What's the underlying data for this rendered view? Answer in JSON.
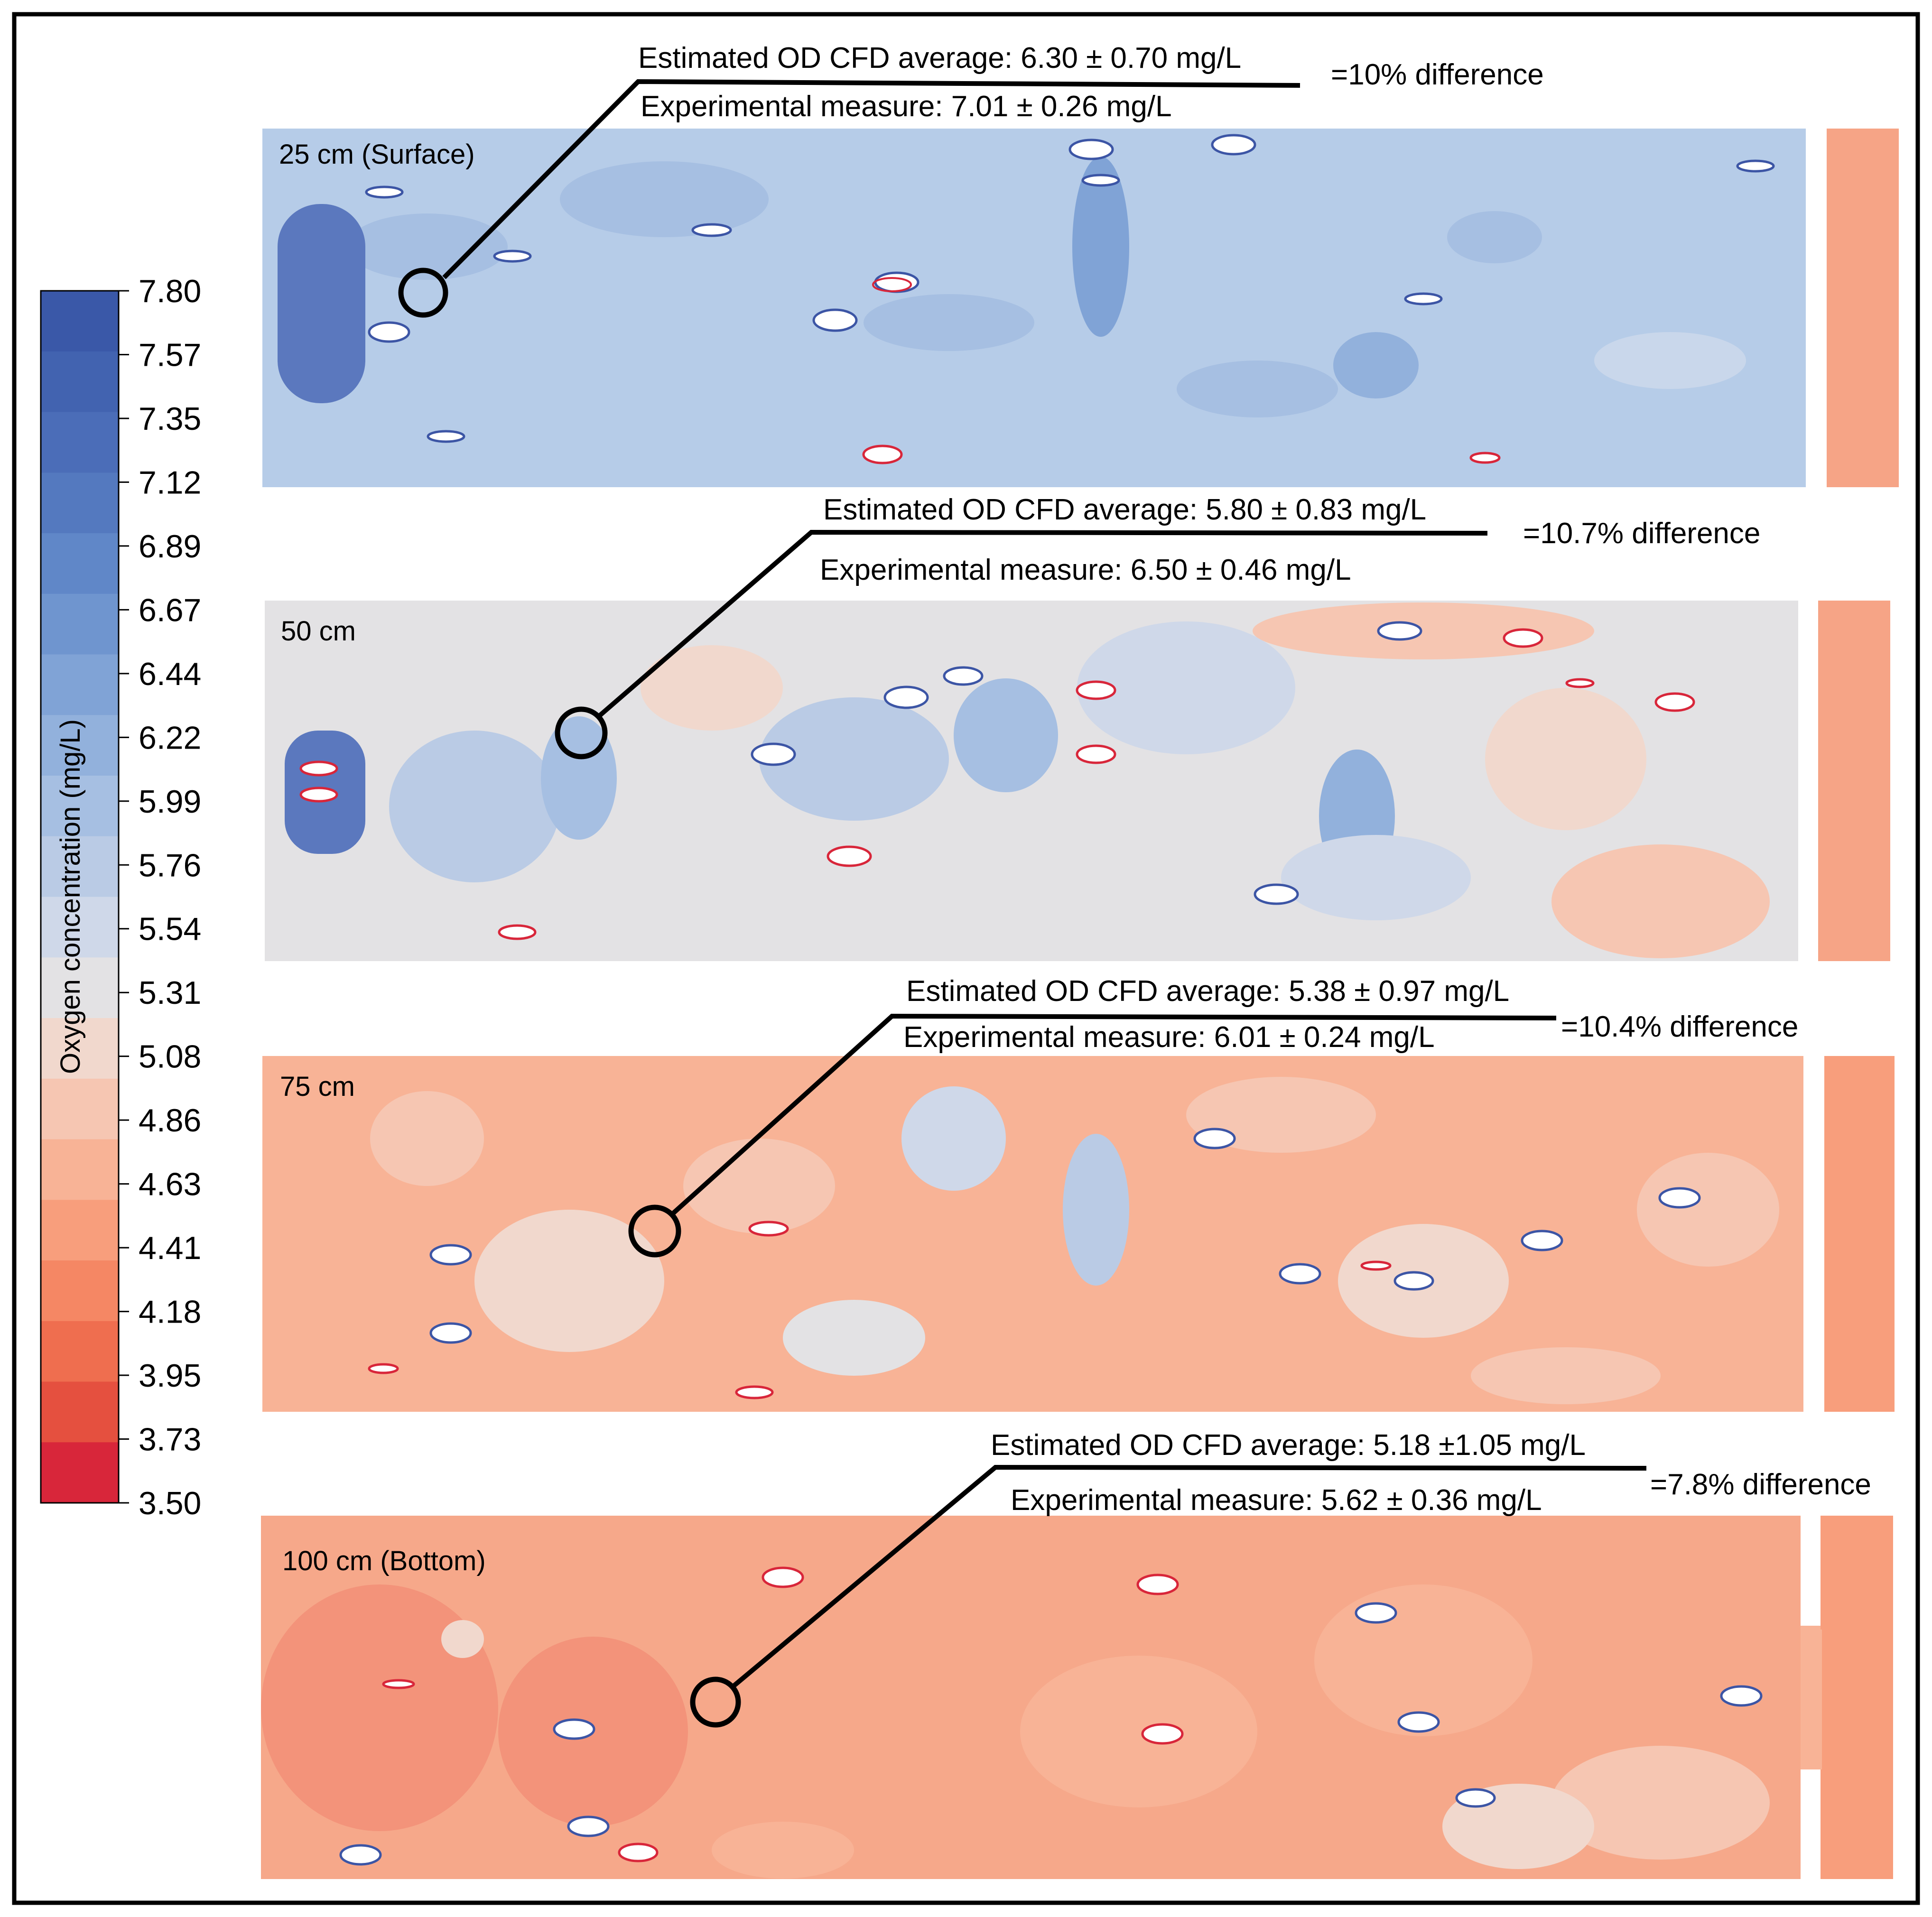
{
  "chart_data": {
    "type": "heatmap",
    "colorbar": {
      "title": "Oxygen concentration  (mg/L)",
      "ticks": [
        "7.80",
        "7.57",
        "7.35",
        "7.12",
        "6.89",
        "6.67",
        "6.44",
        "6.22",
        "5.99",
        "5.76",
        "5.54",
        "5.31",
        "5.08",
        "4.86",
        "4.63",
        "4.41",
        "4.18",
        "3.95",
        "3.73",
        "3.50"
      ],
      "range": [
        3.5,
        7.8
      ],
      "colors": [
        "#3a58a8",
        "#4263b0",
        "#4b6db8",
        "#5479bf",
        "#6087c8",
        "#6f95cf",
        "#80a3d6",
        "#92b1dc",
        "#a6bfe2",
        "#bacbe5",
        "#cfd8e9",
        "#e3e2e4",
        "#f1d8cd",
        "#f6c6b2",
        "#f8b396",
        "#f89e7c",
        "#f58764",
        "#ef6e4f",
        "#e5503f",
        "#d8263a"
      ]
    },
    "panels": [
      {
        "depth_label": "25 cm (Surface)",
        "depth_cm": 25,
        "cfd_label": "Estimated OD CFD average: 6.30 ± 0.70 mg/L",
        "cfd_mean": 6.3,
        "cfd_sd": 0.7,
        "exp_label": "Experimental measure: 7.01 ± 0.26 mg/L",
        "exp_mean": 7.01,
        "exp_sd": 0.26,
        "diff_label": "=10% difference",
        "diff_pct": 10
      },
      {
        "depth_label": "50 cm",
        "depth_cm": 50,
        "cfd_label": "Estimated OD CFD average: 5.80 ± 0.83 mg/L",
        "cfd_mean": 5.8,
        "cfd_sd": 0.83,
        "exp_label": "Experimental measure: 6.50 ± 0.46 mg/L",
        "exp_mean": 6.5,
        "exp_sd": 0.46,
        "diff_label": "=10.7% difference",
        "diff_pct": 10.7
      },
      {
        "depth_label": "75 cm",
        "depth_cm": 75,
        "cfd_label": "Estimated OD CFD average: 5.38 ± 0.97 mg/L",
        "cfd_mean": 5.38,
        "cfd_sd": 0.97,
        "exp_label": "Experimental measure: 6.01 ± 0.24 mg/L",
        "exp_mean": 6.01,
        "exp_sd": 0.24,
        "diff_label": "=10.4% difference",
        "diff_pct": 10.4
      },
      {
        "depth_label": "100 cm (Bottom)",
        "depth_cm": 100,
        "cfd_label": "Estimated OD CFD average: 5.18 ±1.05 mg/L",
        "cfd_mean": 5.18,
        "cfd_sd": 1.05,
        "exp_label": "Experimental measure: 5.62 ± 0.36 mg/L",
        "exp_mean": 5.62,
        "exp_sd": 0.36,
        "diff_label": "=7.8% difference",
        "diff_pct": 7.8
      }
    ]
  }
}
